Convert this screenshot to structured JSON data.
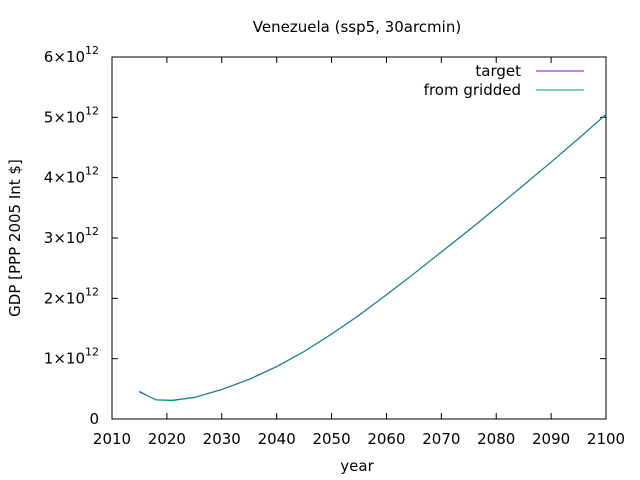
{
  "chart_data": {
    "type": "line",
    "title": "Venezuela (ssp5, 30arcmin)",
    "xlabel": "year",
    "ylabel": "GDP [PPP 2005 Int $]",
    "xlim": [
      2010,
      2100
    ],
    "ylim": [
      0,
      6000000000000
    ],
    "grid": false,
    "legend_position": "top-right",
    "x_ticks": [
      2010,
      2020,
      2030,
      2040,
      2050,
      2060,
      2070,
      2080,
      2090,
      2100
    ],
    "x_tick_labels": [
      "2010",
      "2020",
      "2030",
      "2040",
      "2050",
      "2060",
      "2070",
      "2080",
      "2090",
      "2100"
    ],
    "y_ticks": [
      0,
      1000000000000,
      2000000000000,
      3000000000000,
      4000000000000,
      5000000000000,
      6000000000000
    ],
    "y_tick_labels": [
      {
        "mantissa": "0",
        "exponent": ""
      },
      {
        "mantissa": "1×10",
        "exponent": "12"
      },
      {
        "mantissa": "2×10",
        "exponent": "12"
      },
      {
        "mantissa": "3×10",
        "exponent": "12"
      },
      {
        "mantissa": "4×10",
        "exponent": "12"
      },
      {
        "mantissa": "5×10",
        "exponent": "12"
      },
      {
        "mantissa": "6×10",
        "exponent": "12"
      }
    ],
    "x": [
      2015,
      2018,
      2021,
      2025,
      2030,
      2035,
      2040,
      2045,
      2050,
      2055,
      2060,
      2065,
      2070,
      2075,
      2080,
      2085,
      2090,
      2095,
      2100
    ],
    "series": [
      {
        "name": "target",
        "color": "#9400d3",
        "values": [
          450000000000,
          320000000000,
          310000000000,
          360000000000,
          490000000000,
          660000000000,
          870000000000,
          1120000000000,
          1410000000000,
          1720000000000,
          2060000000000,
          2410000000000,
          2770000000000,
          3130000000000,
          3500000000000,
          3880000000000,
          4260000000000,
          4650000000000,
          5050000000000
        ]
      },
      {
        "name": "from gridded",
        "color": "#009e73",
        "values": [
          460000000000,
          315000000000,
          305000000000,
          355000000000,
          485000000000,
          655000000000,
          865000000000,
          1115000000000,
          1405000000000,
          1715000000000,
          2055000000000,
          2405000000000,
          2765000000000,
          3125000000000,
          3495000000000,
          3875000000000,
          4255000000000,
          4645000000000,
          5045000000000
        ]
      }
    ]
  }
}
